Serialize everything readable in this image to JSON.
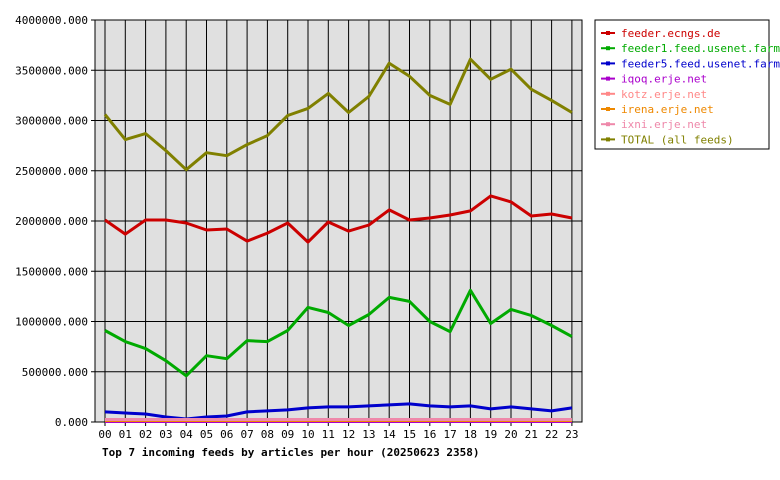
{
  "chart_data": {
    "type": "line",
    "title": "Top 7 incoming feeds by articles per hour (20250623 2358)",
    "categories": [
      "00",
      "01",
      "02",
      "03",
      "04",
      "05",
      "06",
      "07",
      "08",
      "09",
      "10",
      "11",
      "12",
      "13",
      "14",
      "15",
      "16",
      "17",
      "18",
      "19",
      "20",
      "21",
      "22",
      "23"
    ],
    "ylim": [
      0,
      4000000
    ],
    "yticks": [
      {
        "value": 0,
        "label": "0.000"
      },
      {
        "value": 500000,
        "label": "500000.000"
      },
      {
        "value": 1000000,
        "label": "1000000.000"
      },
      {
        "value": 1500000,
        "label": "1500000.000"
      },
      {
        "value": 2000000,
        "label": "2000000.000"
      },
      {
        "value": 2500000,
        "label": "2500000.000"
      },
      {
        "value": 3000000,
        "label": "3000000.000"
      },
      {
        "value": 3500000,
        "label": "3500000.000"
      },
      {
        "value": 4000000,
        "label": "4000000.000"
      }
    ],
    "grid": true,
    "legend_position": "right",
    "series": [
      {
        "name": "feeder.ecngs.de",
        "color": "#cc0000",
        "values": [
          2010000,
          1870000,
          2010000,
          2010000,
          1980000,
          1910000,
          1920000,
          1800000,
          1880000,
          1980000,
          1790000,
          1990000,
          1900000,
          1960000,
          2110000,
          2010000,
          2030000,
          2060000,
          2100000,
          2250000,
          2190000,
          2050000,
          2070000,
          2030000
        ]
      },
      {
        "name": "feeder1.feed.usenet.farm",
        "color": "#00aa00",
        "values": [
          910000,
          800000,
          730000,
          610000,
          460000,
          660000,
          630000,
          810000,
          800000,
          910000,
          1140000,
          1090000,
          960000,
          1070000,
          1240000,
          1200000,
          1000000,
          900000,
          1310000,
          980000,
          1120000,
          1060000,
          960000,
          850000
        ]
      },
      {
        "name": "feeder5.feed.usenet.farm",
        "color": "#0000cc",
        "values": [
          100000,
          90000,
          80000,
          50000,
          30000,
          50000,
          60000,
          100000,
          110000,
          120000,
          140000,
          150000,
          150000,
          160000,
          170000,
          180000,
          160000,
          150000,
          160000,
          130000,
          150000,
          130000,
          110000,
          140000
        ]
      },
      {
        "name": "iqoq.erje.net",
        "color": "#aa00cc",
        "values": [
          5000,
          5000,
          5000,
          5000,
          5000,
          5000,
          5000,
          5000,
          5000,
          5000,
          5000,
          5000,
          5000,
          5000,
          5000,
          5000,
          5000,
          5000,
          5000,
          5000,
          5000,
          5000,
          5000,
          5000
        ]
      },
      {
        "name": "kotz.erje.net",
        "color": "#ff8888",
        "values": [
          25000,
          25000,
          25000,
          25000,
          25000,
          25000,
          25000,
          25000,
          25000,
          25000,
          25000,
          25000,
          25000,
          25000,
          25000,
          25000,
          25000,
          25000,
          25000,
          25000,
          25000,
          25000,
          25000,
          25000
        ]
      },
      {
        "name": "irena.erje.net",
        "color": "#ee8800",
        "values": [
          15000,
          15000,
          15000,
          15000,
          15000,
          15000,
          15000,
          15000,
          15000,
          15000,
          15000,
          15000,
          15000,
          15000,
          15000,
          15000,
          15000,
          15000,
          15000,
          15000,
          15000,
          15000,
          15000,
          15000
        ]
      },
      {
        "name": "ixni.erje.net",
        "color": "#ee88aa",
        "values": [
          25000,
          25000,
          25000,
          25000,
          25000,
          25000,
          25000,
          25000,
          25000,
          25000,
          25000,
          25000,
          25000,
          25000,
          25000,
          25000,
          25000,
          25000,
          25000,
          25000,
          25000,
          25000,
          25000,
          25000
        ]
      },
      {
        "name": "TOTAL (all feeds)",
        "color": "#808000",
        "values": [
          3060000,
          2810000,
          2870000,
          2700000,
          2510000,
          2680000,
          2650000,
          2760000,
          2850000,
          3050000,
          3120000,
          3270000,
          3080000,
          3240000,
          3570000,
          3440000,
          3250000,
          3160000,
          3610000,
          3410000,
          3510000,
          3310000,
          3200000,
          3080000
        ]
      }
    ]
  }
}
